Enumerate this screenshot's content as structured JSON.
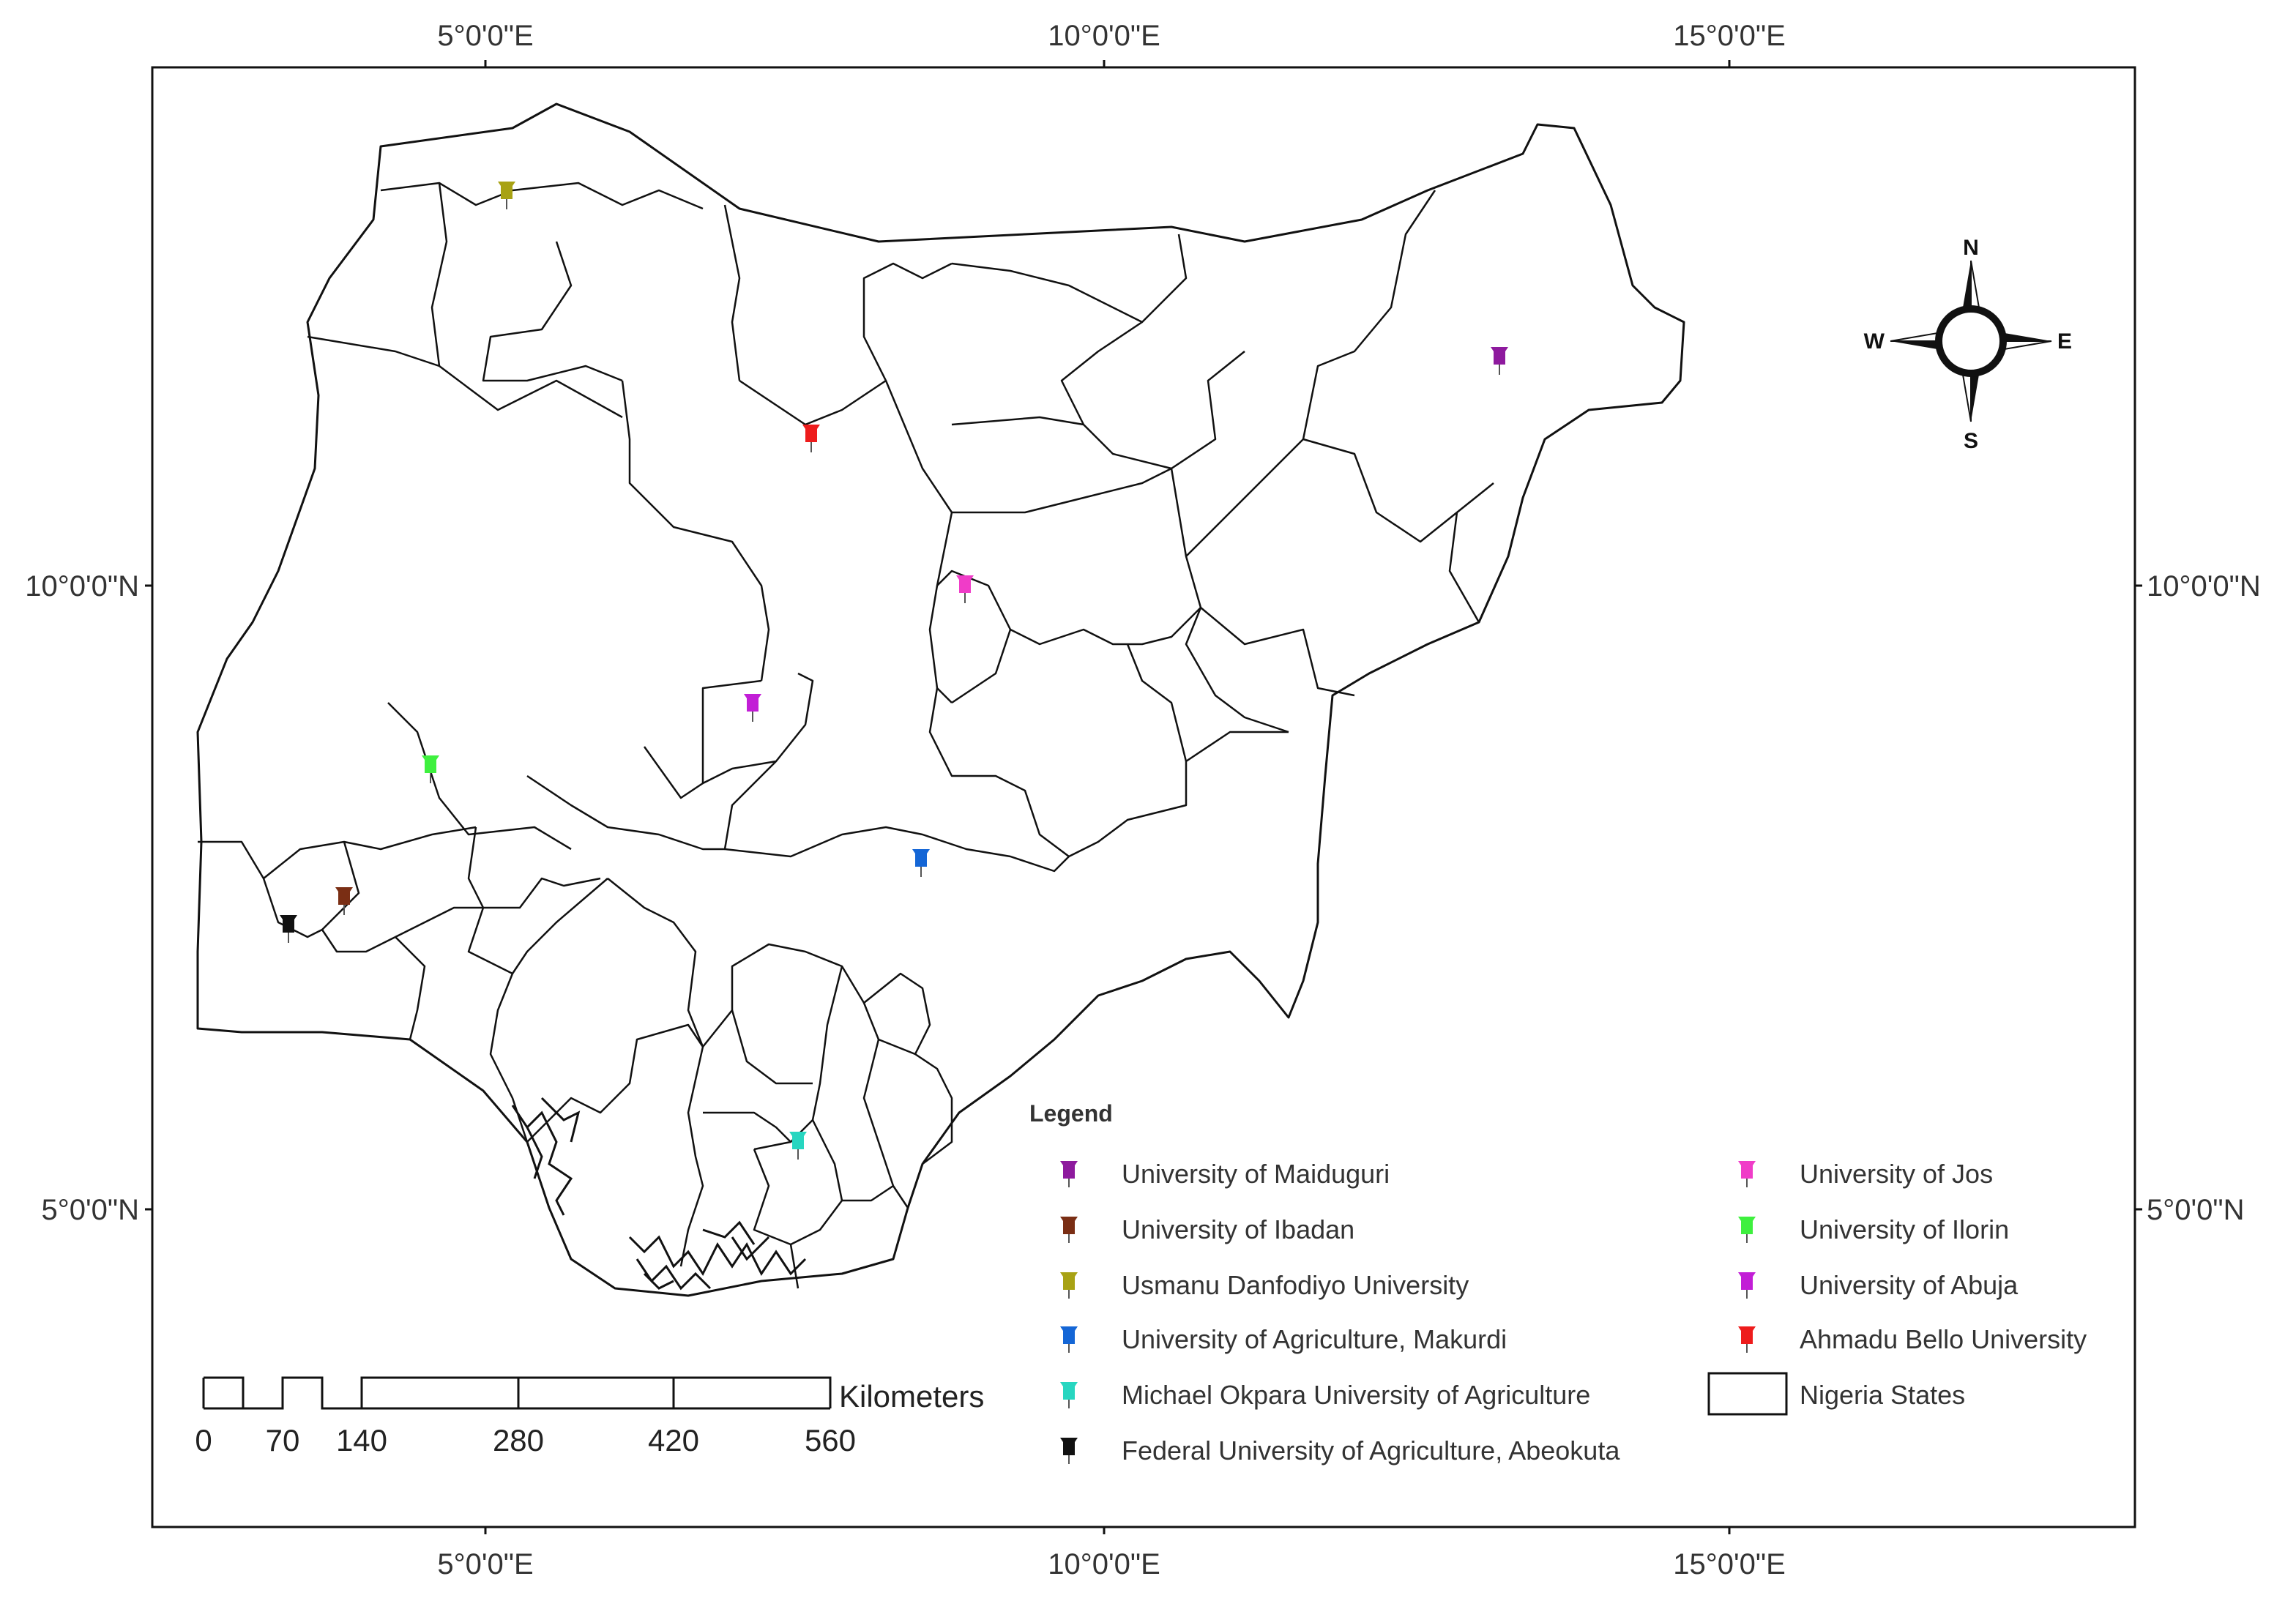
{
  "map": {
    "axes": {
      "top_ticks": [
        "5°0'0\"E",
        "10°0'0\"E",
        "15°0'0\"E"
      ],
      "bottom_ticks": [
        "5°0'0\"E",
        "10°0'0\"E",
        "15°0'0\"E"
      ],
      "left_ticks": [
        "10°0'0\"N",
        "5°0'0\"N"
      ],
      "right_ticks": [
        "10°0'0\"N",
        "5°0'0\"N"
      ]
    },
    "compass": {
      "n": "N",
      "s": "S",
      "e": "E",
      "w": "W"
    },
    "legend": {
      "title": "Legend",
      "items": [
        {
          "label": "University of Maiduguri",
          "color": "#8e1a9e"
        },
        {
          "label": "University of Ibadan",
          "color": "#7a2e14"
        },
        {
          "label": "Usmanu Danfodiyo University",
          "color": "#a8a214"
        },
        {
          "label": "University of Agriculture, Makurdi",
          "color": "#1466d6"
        },
        {
          "label": "Michael Okpara University of Agriculture",
          "color": "#27d6c0"
        },
        {
          "label": "Federal University of Agriculture, Abeokuta",
          "color": "#111111"
        },
        {
          "label": "University of Jos",
          "color": "#f03cc8"
        },
        {
          "label": "University of Ilorin",
          "color": "#3ef03e"
        },
        {
          "label": "University of Abuja",
          "color": "#c21ed6"
        },
        {
          "label": "Ahmadu Bello University",
          "color": "#ee1c1c"
        }
      ],
      "boundary_label": "Nigeria States"
    },
    "scale_bar": {
      "unit": "Kilometers",
      "ticks": [
        "0",
        "70",
        "140",
        "280",
        "420",
        "560"
      ]
    },
    "markers": [
      {
        "name": "University of Maiduguri",
        "color": "#8e1a9e"
      },
      {
        "name": "University of Ibadan",
        "color": "#7a2e14"
      },
      {
        "name": "Usmanu Danfodiyo University",
        "color": "#a8a214"
      },
      {
        "name": "University of Agriculture, Makurdi",
        "color": "#1466d6"
      },
      {
        "name": "Michael Okpara University of Agriculture",
        "color": "#27d6c0"
      },
      {
        "name": "Federal University of Agriculture, Abeokuta",
        "color": "#111111"
      },
      {
        "name": "University of Jos",
        "color": "#f03cc8"
      },
      {
        "name": "University of Ilorin",
        "color": "#3ef03e"
      },
      {
        "name": "University of Abuja",
        "color": "#c21ed6"
      },
      {
        "name": "Ahmadu Bello University",
        "color": "#ee1c1c"
      }
    ]
  }
}
